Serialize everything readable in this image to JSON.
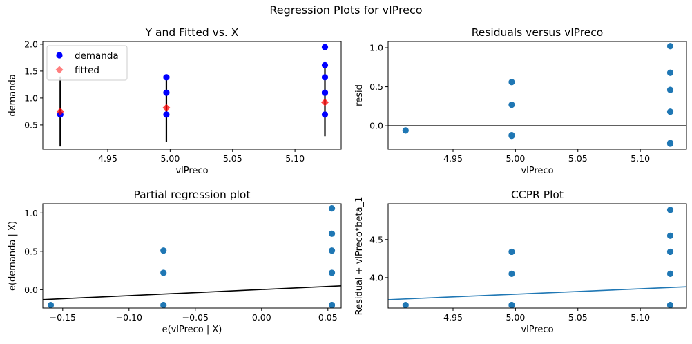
{
  "figure": {
    "suptitle": "Regression Plots for vlPreco"
  },
  "chart_data": [
    {
      "type": "scatter",
      "title": "Y and Fitted vs. X",
      "xlabel": "vlPreco",
      "ylabel": "demanda",
      "xlim": [
        4.898,
        5.137
      ],
      "ylim": [
        0.05,
        2.05
      ],
      "xticks": [
        4.95,
        5.0,
        5.05,
        5.1
      ],
      "xtick_labels": [
        "4.95",
        "5.00",
        "5.05",
        "5.10"
      ],
      "yticks": [
        0.5,
        1.0,
        1.5,
        2.0
      ],
      "ytick_labels": [
        "0.5",
        "1.0",
        "1.5",
        "2.0"
      ],
      "legend": {
        "placement": "upper-left",
        "entries": [
          "demanda",
          "fitted"
        ]
      },
      "series": [
        {
          "name": "demanda",
          "color": "#0000ff",
          "marker": "circle",
          "x": [
            4.912,
            4.997,
            4.997,
            4.997,
            4.997,
            5.124,
            5.124,
            5.124,
            5.124,
            5.124,
            5.124
          ],
          "y": [
            0.693,
            0.693,
            1.099,
            1.386,
            1.386,
            0.693,
            1.099,
            1.386,
            1.609,
            1.946,
            1.099
          ]
        },
        {
          "name": "fitted",
          "color": "#ff0000",
          "marker": "diamond",
          "x": [
            4.912,
            4.997,
            5.124
          ],
          "y": [
            0.75,
            0.82,
            0.92
          ]
        }
      ],
      "error_bars": [
        {
          "x": 4.912,
          "low": 0.1,
          "high": 1.4
        },
        {
          "x": 4.997,
          "low": 0.18,
          "high": 1.4
        },
        {
          "x": 5.124,
          "low": 0.29,
          "high": 1.6
        }
      ]
    },
    {
      "type": "scatter",
      "title": "Residuals versus vlPreco",
      "xlabel": "vlPreco",
      "ylabel": "resid",
      "xlim": [
        4.898,
        5.137
      ],
      "ylim": [
        -0.3,
        1.08
      ],
      "xticks": [
        4.95,
        5.0,
        5.05,
        5.1
      ],
      "xtick_labels": [
        "4.95",
        "5.00",
        "5.05",
        "5.10"
      ],
      "yticks": [
        0.0,
        0.5,
        1.0
      ],
      "ytick_labels": [
        "0.0",
        "0.5",
        "1.0"
      ],
      "hline": 0,
      "series": [
        {
          "color": "#1f77b4",
          "x": [
            4.912,
            4.997,
            4.997,
            4.997,
            4.997,
            5.124,
            5.124,
            5.124,
            5.124,
            5.124,
            5.124
          ],
          "y": [
            -0.06,
            -0.13,
            -0.12,
            0.27,
            0.56,
            -0.23,
            -0.22,
            0.18,
            0.46,
            0.68,
            1.02
          ]
        }
      ]
    },
    {
      "type": "scatter",
      "title": "Partial regression plot",
      "xlabel": "e(vlPreco | X)",
      "ylabel": "e(demanda | X)",
      "xlim": [
        -0.165,
        0.06
      ],
      "ylim": [
        -0.24,
        1.12
      ],
      "xticks": [
        -0.15,
        -0.1,
        -0.05,
        0.0,
        0.05
      ],
      "xtick_labels": [
        "−0.15",
        "−0.10",
        "−0.05",
        "0.00",
        "0.05"
      ],
      "yticks": [
        0.0,
        0.5,
        1.0
      ],
      "ytick_labels": [
        "0.0",
        "0.5",
        "1.0"
      ],
      "fit_line": {
        "color": "#000000",
        "x": [
          -0.165,
          0.06
        ],
        "y": [
          -0.13,
          0.05
        ]
      },
      "series": [
        {
          "color": "#1f77b4",
          "x": [
            -0.159,
            -0.074,
            -0.074,
            -0.074,
            -0.074,
            0.053,
            0.053,
            0.053,
            0.053,
            0.053,
            0.053
          ],
          "y": [
            -0.2,
            -0.2,
            -0.2,
            0.22,
            0.51,
            -0.2,
            -0.2,
            0.22,
            0.51,
            0.73,
            1.06
          ]
        }
      ]
    },
    {
      "type": "scatter",
      "title": "CCPR Plot",
      "xlabel": "vlPreco",
      "ylabel": "Residual + vlPreco*beta_1",
      "xlim": [
        4.898,
        5.137
      ],
      "ylim": [
        3.6,
        4.97
      ],
      "xticks": [
        4.95,
        5.0,
        5.05,
        5.1
      ],
      "xtick_labels": [
        "4.95",
        "5.00",
        "5.05",
        "5.10"
      ],
      "yticks": [
        4.0,
        4.5
      ],
      "ytick_labels": [
        "4.0",
        "4.5"
      ],
      "fit_line": {
        "color": "#1f77b4",
        "x": [
          4.898,
          5.137
        ],
        "y": [
          3.71,
          3.88
        ]
      },
      "series": [
        {
          "color": "#1f77b4",
          "x": [
            4.912,
            4.997,
            4.997,
            4.997,
            4.997,
            5.124,
            5.124,
            5.124,
            5.124,
            5.124,
            5.124
          ],
          "y": [
            3.64,
            3.64,
            3.64,
            4.05,
            4.34,
            3.64,
            3.64,
            4.05,
            4.34,
            4.55,
            4.89
          ]
        }
      ]
    }
  ]
}
